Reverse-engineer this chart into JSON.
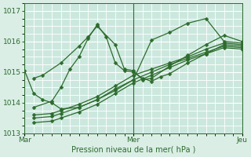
{
  "xlabel": "Pression niveau de la mer( hPa )",
  "bg_color": "#daeee6",
  "plot_bg_color": "#cce8de",
  "grid_color": "#ffffff",
  "line_color": "#2d6b2d",
  "marker_color": "#2d6b2d",
  "xlim": [
    0,
    48
  ],
  "ylim": [
    1013.0,
    1017.2
  ],
  "yticks": [
    1013,
    1014,
    1015,
    1016,
    1017
  ],
  "xtick_labels": [
    "Mar",
    "Mer",
    "Jeu"
  ],
  "xtick_positions": [
    0,
    24,
    48
  ],
  "series": [
    {
      "x": [
        2,
        4,
        8,
        12,
        14,
        16,
        20,
        22,
        24,
        26,
        28,
        32,
        36,
        40,
        44,
        48
      ],
      "y": [
        1014.8,
        1014.9,
        1015.3,
        1015.85,
        1016.15,
        1016.5,
        1015.9,
        1015.1,
        1015.05,
        1014.75,
        1014.8,
        1015.2,
        1015.55,
        1015.9,
        1016.2,
        1016.0
      ]
    },
    {
      "x": [
        2,
        6,
        8,
        10,
        12,
        14,
        16,
        18,
        20,
        22,
        24,
        26,
        28,
        30,
        32,
        36,
        40,
        44,
        48
      ],
      "y": [
        1013.85,
        1014.05,
        1014.5,
        1015.1,
        1015.5,
        1016.1,
        1016.55,
        1016.15,
        1015.3,
        1015.05,
        1015.0,
        1014.8,
        1014.7,
        1014.85,
        1014.95,
        1015.3,
        1015.6,
        1015.9,
        1015.85
      ]
    },
    {
      "x": [
        2,
        6,
        8,
        12,
        16,
        20,
        24,
        28,
        32,
        36,
        40,
        44,
        48
      ],
      "y": [
        1013.6,
        1013.65,
        1013.75,
        1013.95,
        1014.2,
        1014.55,
        1014.9,
        1015.1,
        1015.3,
        1015.5,
        1015.75,
        1015.95,
        1015.9
      ]
    },
    {
      "x": [
        2,
        6,
        8,
        12,
        16,
        20,
        24,
        28,
        32,
        36,
        40,
        44,
        48
      ],
      "y": [
        1013.5,
        1013.55,
        1013.65,
        1013.85,
        1014.1,
        1014.4,
        1014.75,
        1015.0,
        1015.25,
        1015.45,
        1015.65,
        1015.85,
        1015.8
      ]
    },
    {
      "x": [
        2,
        6,
        8,
        12,
        16,
        20,
        24,
        28,
        32,
        36,
        40,
        44,
        48
      ],
      "y": [
        1013.35,
        1013.4,
        1013.5,
        1013.7,
        1013.95,
        1014.3,
        1014.65,
        1014.9,
        1015.15,
        1015.4,
        1015.6,
        1015.8,
        1015.75
      ]
    },
    {
      "x": [
        0,
        2,
        4,
        6,
        8,
        12,
        16,
        20,
        24,
        28,
        32,
        36,
        40,
        44,
        48
      ],
      "y": [
        1015.05,
        1014.3,
        1014.1,
        1014.0,
        1013.8,
        1013.85,
        1014.1,
        1014.45,
        1014.75,
        1016.05,
        1016.3,
        1016.6,
        1016.75,
        1016.0,
        1015.95
      ]
    }
  ]
}
